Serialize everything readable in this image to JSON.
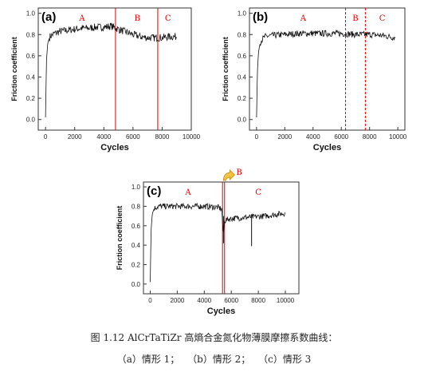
{
  "figure": {
    "caption_title": "图 1.12 AlCrTaTiZr 高熵合金氮化物薄膜摩擦系数曲线：",
    "caption_items": [
      "（a）情形 1；",
      "（b）情形 2；",
      "（c）情形 3"
    ]
  },
  "chart_data": [
    {
      "type": "line",
      "panel_label": "(a)",
      "xlabel": "Cycles",
      "ylabel": "Friction coefficient",
      "xlim": [
        -500,
        10000
      ],
      "ylim": [
        -0.1,
        1.05
      ],
      "xticks": [
        0,
        2000,
        4000,
        6000,
        8000,
        10000
      ],
      "yticks": [
        0.0,
        0.2,
        0.4,
        0.6,
        0.8,
        1.0
      ],
      "x_end": 9000,
      "series": [
        {
          "x": [
            0,
            60,
            150,
            300,
            600,
            1000,
            1500,
            2000,
            2500,
            3000,
            3500,
            4000,
            4500,
            4800,
            5200,
            5600,
            6000,
            6500,
            7000,
            7500,
            8000,
            8500,
            9000
          ],
          "values": [
            0.02,
            0.55,
            0.72,
            0.78,
            0.81,
            0.83,
            0.84,
            0.85,
            0.86,
            0.86,
            0.87,
            0.87,
            0.88,
            0.86,
            0.84,
            0.82,
            0.8,
            0.78,
            0.77,
            0.77,
            0.77,
            0.78,
            0.78
          ],
          "noise": 0.035
        }
      ],
      "regions": [
        {
          "label": "A",
          "at": 2500
        },
        {
          "label": "B",
          "at": 6300
        },
        {
          "label": "C",
          "at": 8400
        }
      ],
      "dividers": [
        {
          "x": 4800,
          "style": "solid"
        },
        {
          "x": 7700,
          "style": "solid"
        }
      ],
      "grid": false
    },
    {
      "type": "line",
      "panel_label": "(b)",
      "xlabel": "Cycles",
      "ylabel": "Friction coefficient",
      "xlim": [
        -500,
        10500
      ],
      "ylim": [
        -0.1,
        1.05
      ],
      "xticks": [
        0,
        2000,
        4000,
        6000,
        8000,
        10000
      ],
      "yticks": [
        0.0,
        0.2,
        0.4,
        0.6,
        0.8,
        1.0
      ],
      "x_end": 9800,
      "series": [
        {
          "x": [
            0,
            60,
            150,
            300,
            600,
            1000,
            2000,
            3000,
            4000,
            5000,
            6000,
            7000,
            8000,
            9000,
            9800
          ],
          "values": [
            0.02,
            0.45,
            0.65,
            0.74,
            0.78,
            0.79,
            0.8,
            0.81,
            0.81,
            0.81,
            0.81,
            0.8,
            0.8,
            0.79,
            0.77
          ],
          "noise": 0.03
        }
      ],
      "regions": [
        {
          "label": "A",
          "at": 3300
        },
        {
          "label": "B",
          "at": 7000
        },
        {
          "label": "C",
          "at": 8900
        }
      ],
      "dividers": [
        {
          "x": 6300,
          "style": "dashed"
        },
        {
          "x": 7700,
          "style": "dashed"
        }
      ],
      "grid": false
    },
    {
      "type": "line",
      "panel_label": "(c)",
      "xlabel": "Cycles",
      "ylabel": "Friction coefficient",
      "xlim": [
        -500,
        11000
      ],
      "ylim": [
        -0.1,
        1.05
      ],
      "xticks": [
        0,
        2000,
        4000,
        6000,
        8000,
        10000
      ],
      "yticks": [
        0.0,
        0.2,
        0.4,
        0.6,
        0.8,
        1.0
      ],
      "x_end": 10000,
      "series": [
        {
          "x": [
            0,
            60,
            150,
            300,
            600,
            1000,
            2000,
            3000,
            4000,
            5000,
            5300,
            5400,
            5500,
            5800,
            6500,
            7500,
            8500,
            9500,
            10000
          ],
          "values": [
            0.02,
            0.55,
            0.72,
            0.78,
            0.8,
            0.8,
            0.8,
            0.8,
            0.8,
            0.79,
            0.77,
            0.5,
            0.65,
            0.67,
            0.68,
            0.69,
            0.7,
            0.72,
            0.73
          ],
          "noise": 0.03
        }
      ],
      "spikes": [
        {
          "x": 5420,
          "y": 0.42
        },
        {
          "x": 7500,
          "y": 0.39
        }
      ],
      "regions": [
        {
          "label": "A",
          "at": 2800
        },
        {
          "label": "C",
          "at": 8000
        }
      ],
      "dividers": [
        {
          "x": 5350,
          "style": "solid"
        },
        {
          "x": 5500,
          "style": "solid"
        }
      ],
      "callout_label": "B",
      "callout_at": 5420,
      "grid": false
    }
  ]
}
